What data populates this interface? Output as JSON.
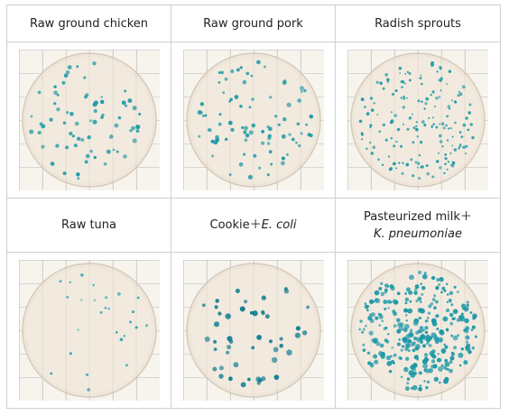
{
  "panels": [
    {
      "label": "Raw ground chicken",
      "colony_color": "#1e9aa6",
      "colony_density": "sparse"
    },
    {
      "label": "Raw ground pork",
      "colony_color": "#1e9aa6",
      "colony_density": "sparse"
    },
    {
      "label": "Radish sprouts",
      "colony_color": "#1e9aa6",
      "colony_density": "moderate"
    },
    {
      "label": "Raw tuna",
      "colony_color": "#2aa6b0",
      "colony_density": "very sparse"
    },
    {
      "label_prefix": "Cookie＋",
      "label_italic": "E. coli",
      "colony_color": "#137e91",
      "colony_density": "sparse, large colonies"
    },
    {
      "label_line1": "Pasteurized milk＋",
      "label_line2": "K. pneumoniae",
      "colony_color": "#1c98a7",
      "colony_density": "dense"
    }
  ]
}
